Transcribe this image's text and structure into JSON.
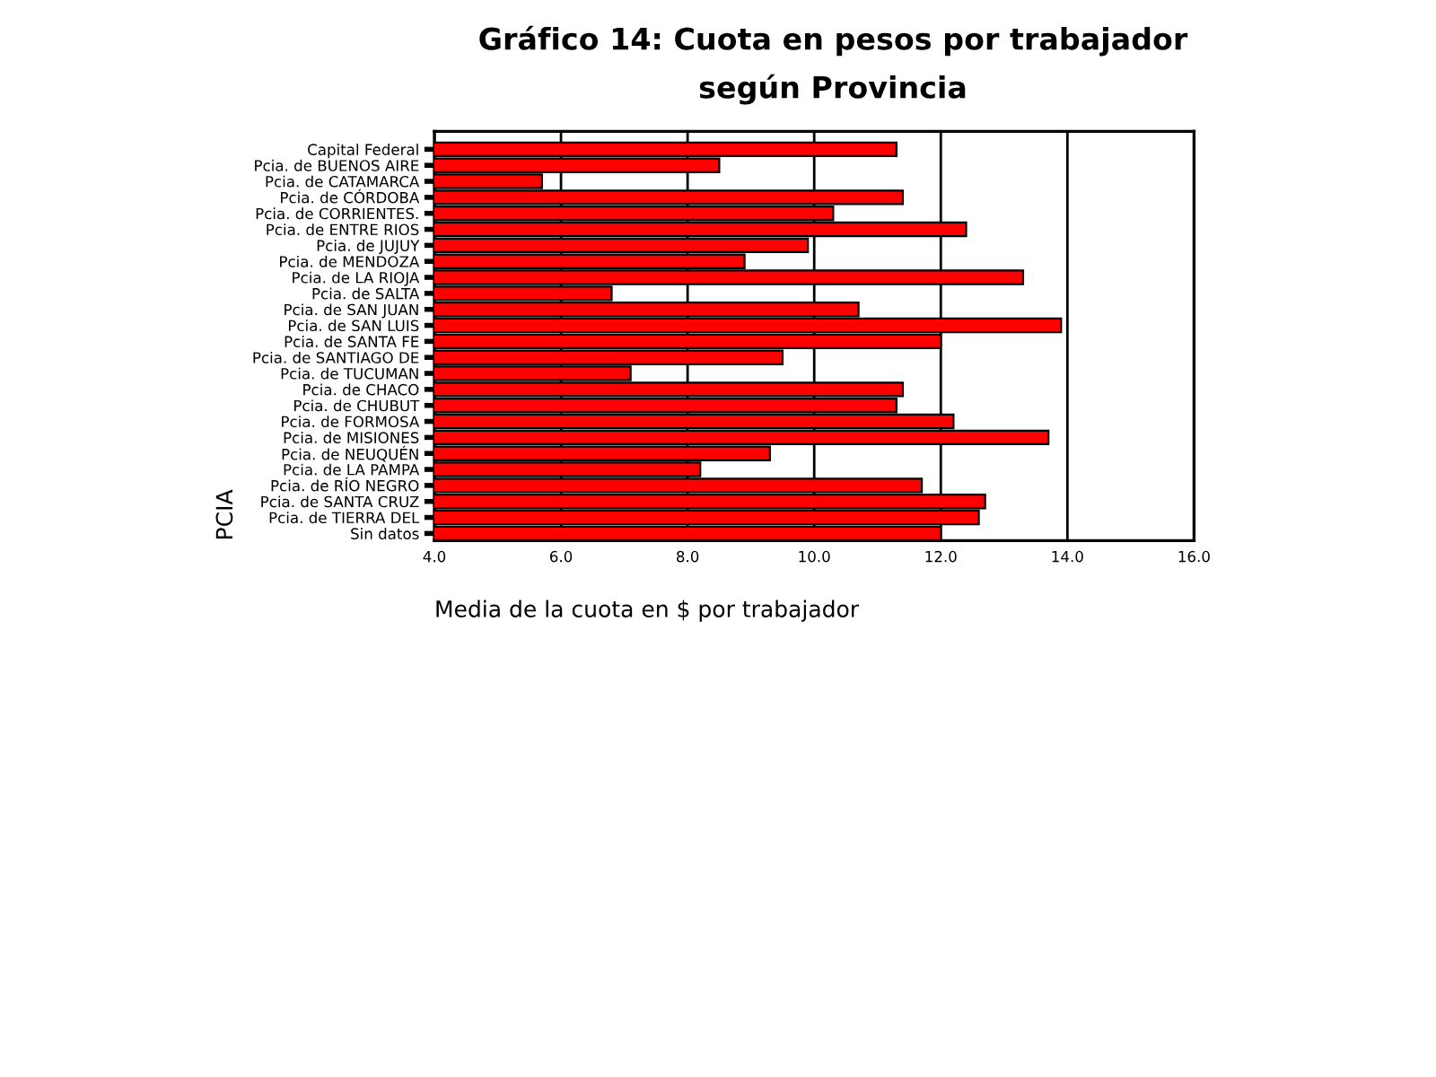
{
  "chart_data": {
    "type": "bar",
    "orientation": "horizontal",
    "title": "Gráfico 14: Cuota en pesos por trabajador",
    "subtitle": "según Provincia",
    "xlabel": "Media de la cuota en $ por trabajador",
    "ylabel": "PCIA",
    "categories": [
      "Capital Federal",
      "Pcia. de BUENOS AIRE",
      "Pcia. de CATAMARCA",
      "Pcia. de CÓRDOBA",
      "Pcia. de CORRIENTES.",
      "Pcia. de ENTRE RIOS",
      "Pcia. de JUJUY",
      "Pcia. de MENDOZA",
      "Pcia. de LA RIOJA",
      "Pcia. de SALTA",
      "Pcia. de SAN JUAN",
      "Pcia. de SAN LUIS",
      "Pcia. de SANTA FE",
      "Pcia. de SANTIAGO DE",
      "Pcia. de TUCUMAN",
      "Pcia. de CHACO",
      "Pcia. de CHUBUT",
      "Pcia. de FORMOSA",
      "Pcia. de MISIONES",
      "Pcia. de NEUQUÉN",
      "Pcia. de LA PAMPA",
      "Pcia. de RÍO NEGRO",
      "Pcia. de SANTA CRUZ",
      "Pcia. de TIERRA DEL",
      "Sin datos"
    ],
    "values": [
      11.3,
      8.5,
      5.7,
      11.4,
      10.3,
      12.4,
      9.9,
      8.9,
      13.3,
      6.8,
      10.7,
      13.9,
      12.0,
      9.5,
      7.1,
      11.4,
      11.3,
      12.2,
      13.7,
      9.3,
      8.2,
      11.7,
      12.7,
      12.6,
      12.0
    ],
    "color": "#ff0000",
    "xlim": [
      4,
      16
    ],
    "xticks": [
      {
        "value": 4,
        "label": "4.0"
      },
      {
        "value": 6,
        "label": "6.0"
      },
      {
        "value": 8,
        "label": "8.0"
      },
      {
        "value": 10,
        "label": "10.0"
      },
      {
        "value": 12,
        "label": "12.0"
      },
      {
        "value": 14,
        "label": "14.0"
      },
      {
        "value": 16,
        "label": "16.0"
      }
    ],
    "grid": "x"
  }
}
